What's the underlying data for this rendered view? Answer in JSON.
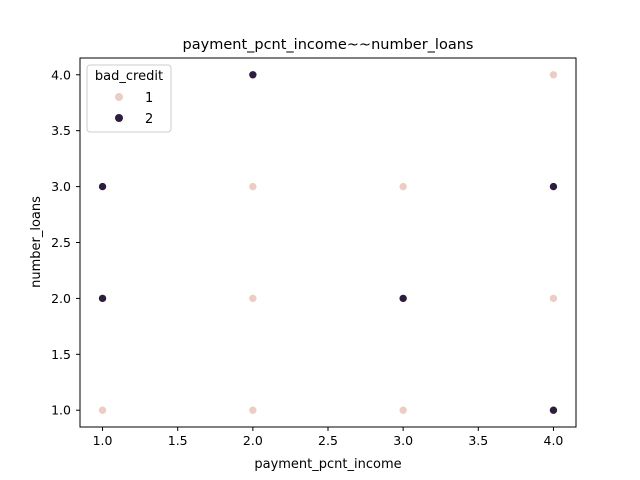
{
  "chart_data": {
    "type": "scatter",
    "title": "payment_pcnt_income~~number_loans",
    "xlabel": "payment_pcnt_income",
    "ylabel": "number_loans",
    "xlim": [
      0.85,
      4.15
    ],
    "ylim": [
      0.85,
      4.15
    ],
    "xticks": [
      1.0,
      1.5,
      2.0,
      2.5,
      3.0,
      3.5,
      4.0
    ],
    "yticks": [
      1.0,
      1.5,
      2.0,
      2.5,
      3.0,
      3.5,
      4.0
    ],
    "tick_format_decimals": 1,
    "grid": false,
    "legend": {
      "title": "bad_credit",
      "placement": "top-left"
    },
    "series": [
      {
        "name": "1",
        "color": "#ebcdc6",
        "points": [
          [
            1,
            1
          ],
          [
            2,
            1
          ],
          [
            3,
            1
          ],
          [
            2,
            2
          ],
          [
            4,
            2
          ],
          [
            2,
            3
          ],
          [
            3,
            3
          ],
          [
            4,
            4
          ]
        ]
      },
      {
        "name": "2",
        "color": "#2d1e3e",
        "points": [
          [
            4,
            1
          ],
          [
            1,
            2
          ],
          [
            3,
            2
          ],
          [
            1,
            3
          ],
          [
            4,
            3
          ],
          [
            2,
            4
          ]
        ]
      }
    ]
  }
}
